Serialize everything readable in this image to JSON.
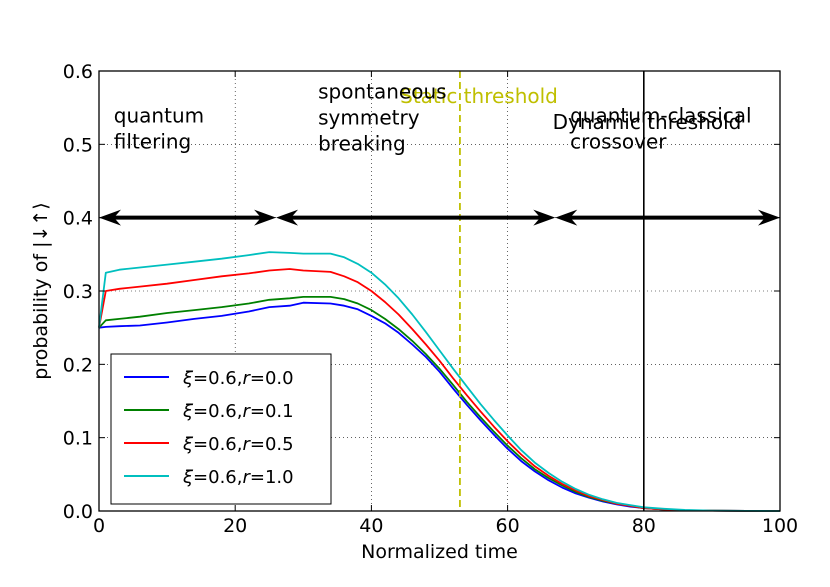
{
  "chart_data": {
    "type": "line",
    "xlabel": "Normalized time",
    "ylabel": "probability of |↓↑⟩",
    "xlim": [
      0,
      100
    ],
    "ylim": [
      0,
      0.6
    ],
    "grid": true,
    "legend_placement": "lower-left",
    "x_ticks": [
      "0",
      "20",
      "40",
      "60",
      "80",
      "100"
    ],
    "y_ticks": [
      "0.0",
      "0.1",
      "0.2",
      "0.3",
      "0.4",
      "0.5",
      "0.6"
    ],
    "series": [
      {
        "name": "ξ=0.6, r=0.0",
        "legend": {
          "sym": "ξ",
          "mid": "=0.6,",
          "var": "r",
          "val": "=0.0"
        },
        "color": "#0000ff",
        "points": [
          [
            0,
            0.25
          ],
          [
            1,
            0.251
          ],
          [
            3,
            0.252
          ],
          [
            6,
            0.253
          ],
          [
            10,
            0.257
          ],
          [
            14,
            0.262
          ],
          [
            18,
            0.266
          ],
          [
            22,
            0.272
          ],
          [
            25,
            0.278
          ],
          [
            28,
            0.28
          ],
          [
            30,
            0.284
          ],
          [
            34,
            0.283
          ],
          [
            36,
            0.28
          ],
          [
            38,
            0.275
          ],
          [
            40,
            0.266
          ],
          [
            42,
            0.256
          ],
          [
            44,
            0.243
          ],
          [
            46,
            0.227
          ],
          [
            48,
            0.21
          ],
          [
            50,
            0.19
          ],
          [
            52,
            0.167
          ],
          [
            54,
            0.145
          ],
          [
            56,
            0.124
          ],
          [
            58,
            0.104
          ],
          [
            60,
            0.085
          ],
          [
            62,
            0.068
          ],
          [
            64,
            0.054
          ],
          [
            66,
            0.042
          ],
          [
            68,
            0.032
          ],
          [
            70,
            0.024
          ],
          [
            72,
            0.018
          ],
          [
            74,
            0.013
          ],
          [
            76,
            0.009
          ],
          [
            78,
            0.006
          ],
          [
            80,
            0.004
          ],
          [
            83,
            0.002
          ],
          [
            86,
            0.001
          ],
          [
            90,
            0.0005
          ],
          [
            95,
            0.0001
          ],
          [
            100,
            0
          ]
        ]
      },
      {
        "name": "ξ=0.6, r=0.1",
        "legend": {
          "sym": "ξ",
          "mid": "=0.6,",
          "var": "r",
          "val": "=0.1"
        },
        "color": "#008000",
        "points": [
          [
            0,
            0.25
          ],
          [
            1,
            0.26
          ],
          [
            3,
            0.262
          ],
          [
            6,
            0.265
          ],
          [
            10,
            0.27
          ],
          [
            14,
            0.274
          ],
          [
            18,
            0.278
          ],
          [
            22,
            0.283
          ],
          [
            25,
            0.288
          ],
          [
            28,
            0.29
          ],
          [
            30,
            0.292
          ],
          [
            34,
            0.292
          ],
          [
            36,
            0.289
          ],
          [
            38,
            0.283
          ],
          [
            40,
            0.274
          ],
          [
            42,
            0.262
          ],
          [
            44,
            0.248
          ],
          [
            46,
            0.232
          ],
          [
            48,
            0.214
          ],
          [
            50,
            0.194
          ],
          [
            52,
            0.172
          ],
          [
            54,
            0.149
          ],
          [
            56,
            0.128
          ],
          [
            58,
            0.108
          ],
          [
            60,
            0.089
          ],
          [
            62,
            0.072
          ],
          [
            64,
            0.057
          ],
          [
            66,
            0.045
          ],
          [
            68,
            0.035
          ],
          [
            70,
            0.026
          ],
          [
            72,
            0.019
          ],
          [
            74,
            0.014
          ],
          [
            76,
            0.01
          ],
          [
            78,
            0.007
          ],
          [
            80,
            0.004
          ],
          [
            83,
            0.002
          ],
          [
            86,
            0.001
          ],
          [
            90,
            0.0005
          ],
          [
            95,
            0.0001
          ],
          [
            100,
            0
          ]
        ]
      },
      {
        "name": "ξ=0.6, r=0.5",
        "legend": {
          "sym": "ξ",
          "mid": "=0.6,",
          "var": "r",
          "val": "=0.5"
        },
        "color": "#ff0000",
        "points": [
          [
            0,
            0.25
          ],
          [
            1,
            0.3
          ],
          [
            3,
            0.303
          ],
          [
            6,
            0.306
          ],
          [
            10,
            0.31
          ],
          [
            14,
            0.315
          ],
          [
            18,
            0.32
          ],
          [
            22,
            0.324
          ],
          [
            25,
            0.328
          ],
          [
            28,
            0.33
          ],
          [
            30,
            0.328
          ],
          [
            34,
            0.326
          ],
          [
            36,
            0.32
          ],
          [
            38,
            0.312
          ],
          [
            40,
            0.3
          ],
          [
            42,
            0.285
          ],
          [
            44,
            0.268
          ],
          [
            46,
            0.248
          ],
          [
            48,
            0.227
          ],
          [
            50,
            0.205
          ],
          [
            52,
            0.181
          ],
          [
            54,
            0.158
          ],
          [
            56,
            0.136
          ],
          [
            58,
            0.115
          ],
          [
            60,
            0.095
          ],
          [
            62,
            0.077
          ],
          [
            64,
            0.061
          ],
          [
            66,
            0.048
          ],
          [
            68,
            0.037
          ],
          [
            70,
            0.028
          ],
          [
            72,
            0.02
          ],
          [
            74,
            0.015
          ],
          [
            76,
            0.01
          ],
          [
            78,
            0.007
          ],
          [
            80,
            0.004
          ],
          [
            83,
            0.002
          ],
          [
            86,
            0.001
          ],
          [
            90,
            0.0005
          ],
          [
            95,
            0.0001
          ],
          [
            100,
            0
          ]
        ]
      },
      {
        "name": "ξ=0.6, r=1.0",
        "legend": {
          "sym": "ξ",
          "mid": "=0.6,",
          "var": "r",
          "val": "=1.0"
        },
        "color": "#00bfbf",
        "points": [
          [
            0,
            0.25
          ],
          [
            1,
            0.325
          ],
          [
            3,
            0.329
          ],
          [
            6,
            0.332
          ],
          [
            10,
            0.336
          ],
          [
            14,
            0.34
          ],
          [
            18,
            0.344
          ],
          [
            22,
            0.349
          ],
          [
            25,
            0.353
          ],
          [
            28,
            0.352
          ],
          [
            30,
            0.351
          ],
          [
            34,
            0.351
          ],
          [
            36,
            0.346
          ],
          [
            38,
            0.337
          ],
          [
            40,
            0.325
          ],
          [
            42,
            0.309
          ],
          [
            44,
            0.29
          ],
          [
            46,
            0.268
          ],
          [
            48,
            0.244
          ],
          [
            50,
            0.219
          ],
          [
            52,
            0.194
          ],
          [
            54,
            0.17
          ],
          [
            56,
            0.146
          ],
          [
            58,
            0.124
          ],
          [
            60,
            0.103
          ],
          [
            62,
            0.083
          ],
          [
            64,
            0.066
          ],
          [
            66,
            0.052
          ],
          [
            68,
            0.04
          ],
          [
            70,
            0.03
          ],
          [
            72,
            0.022
          ],
          [
            74,
            0.016
          ],
          [
            76,
            0.011
          ],
          [
            78,
            0.008
          ],
          [
            80,
            0.005
          ],
          [
            83,
            0.003
          ],
          [
            86,
            0.0015
          ],
          [
            90,
            0.0006
          ],
          [
            95,
            0.0001
          ],
          [
            100,
            0
          ]
        ]
      }
    ],
    "static_threshold": {
      "x": 53,
      "label": "Static threshold",
      "color": "#bfbf00"
    },
    "dynamic_threshold": {
      "x": 80,
      "label": "Dynamic threshold",
      "color": "#000000"
    },
    "phase_arrows": {
      "y": 0.4,
      "segments": [
        [
          0,
          26
        ],
        [
          26,
          67
        ],
        [
          67,
          100
        ]
      ]
    },
    "phase_labels": [
      {
        "lines": [
          "quantum",
          "filtering"
        ],
        "x": 1,
        "y": 0.52
      },
      {
        "lines": [
          "spontaneous",
          "symmetry",
          "breaking"
        ],
        "x": 31,
        "y": 0.55
      },
      {
        "lines": [
          "quantum-classical",
          "crossover"
        ],
        "x": 68,
        "y": 0.52
      }
    ]
  }
}
